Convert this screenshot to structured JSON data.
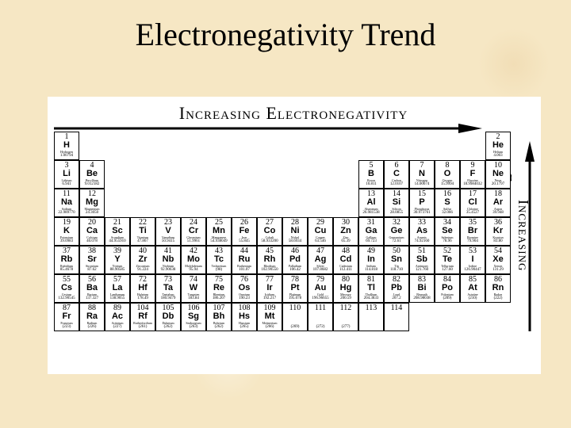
{
  "slide": {
    "title": "Electronegativity Trend"
  },
  "figure": {
    "top_label": "Increasing Electronegativity",
    "side_label": "Increasing Electronegativity"
  },
  "elements": [
    {
      "n": "1",
      "s": "H",
      "name": "Hydrogen",
      "m": "1.00794",
      "r": 1,
      "c": 1
    },
    {
      "n": "2",
      "s": "He",
      "name": "Helium",
      "m": "4.003",
      "r": 1,
      "c": 18
    },
    {
      "n": "3",
      "s": "Li",
      "name": "Lithium",
      "m": "6.941",
      "r": 2,
      "c": 1
    },
    {
      "n": "4",
      "s": "Be",
      "name": "Beryllium",
      "m": "9.012182",
      "r": 2,
      "c": 2
    },
    {
      "n": "5",
      "s": "B",
      "name": "Boron",
      "m": "10.811",
      "r": 2,
      "c": 13
    },
    {
      "n": "6",
      "s": "C",
      "name": "Carbon",
      "m": "12.0107",
      "r": 2,
      "c": 14
    },
    {
      "n": "7",
      "s": "N",
      "name": "Nitrogen",
      "m": "14.00674",
      "r": 2,
      "c": 15
    },
    {
      "n": "8",
      "s": "O",
      "name": "Oxygen",
      "m": "15.9994",
      "r": 2,
      "c": 16
    },
    {
      "n": "9",
      "s": "F",
      "name": "Fluorine",
      "m": "18.9984032",
      "r": 2,
      "c": 17
    },
    {
      "n": "10",
      "s": "Ne",
      "name": "Neon",
      "m": "20.1797",
      "r": 2,
      "c": 18
    },
    {
      "n": "11",
      "s": "Na",
      "name": "Sodium",
      "m": "22.989770",
      "r": 3,
      "c": 1
    },
    {
      "n": "12",
      "s": "Mg",
      "name": "Magnesium",
      "m": "24.3050",
      "r": 3,
      "c": 2
    },
    {
      "n": "13",
      "s": "Al",
      "name": "Aluminum",
      "m": "26.981538",
      "r": 3,
      "c": 13
    },
    {
      "n": "14",
      "s": "Si",
      "name": "Silicon",
      "m": "28.0855",
      "r": 3,
      "c": 14
    },
    {
      "n": "15",
      "s": "P",
      "name": "Phosphorus",
      "m": "30.973761",
      "r": 3,
      "c": 15
    },
    {
      "n": "16",
      "s": "S",
      "name": "Sulfur",
      "m": "32.066",
      "r": 3,
      "c": 16
    },
    {
      "n": "17",
      "s": "Cl",
      "name": "Chlorine",
      "m": "35.4527",
      "r": 3,
      "c": 17
    },
    {
      "n": "18",
      "s": "Ar",
      "name": "Argon",
      "m": "39.948",
      "r": 3,
      "c": 18
    },
    {
      "n": "19",
      "s": "K",
      "name": "Potassium",
      "m": "39.0983",
      "r": 4,
      "c": 1
    },
    {
      "n": "20",
      "s": "Ca",
      "name": "Calcium",
      "m": "40.078",
      "r": 4,
      "c": 2
    },
    {
      "n": "21",
      "s": "Sc",
      "name": "Scandium",
      "m": "44.955910",
      "r": 4,
      "c": 3
    },
    {
      "n": "22",
      "s": "Ti",
      "name": "Titanium",
      "m": "47.867",
      "r": 4,
      "c": 4
    },
    {
      "n": "23",
      "s": "V",
      "name": "Vanadium",
      "m": "50.9415",
      "r": 4,
      "c": 5
    },
    {
      "n": "24",
      "s": "Cr",
      "name": "Chromium",
      "m": "51.9961",
      "r": 4,
      "c": 6
    },
    {
      "n": "25",
      "s": "Mn",
      "name": "Manganese",
      "m": "54.938049",
      "r": 4,
      "c": 7
    },
    {
      "n": "26",
      "s": "Fe",
      "name": "Iron",
      "m": "55.845",
      "r": 4,
      "c": 8
    },
    {
      "n": "27",
      "s": "Co",
      "name": "Cobalt",
      "m": "58.933200",
      "r": 4,
      "c": 9
    },
    {
      "n": "28",
      "s": "Ni",
      "name": "Nickel",
      "m": "58.6934",
      "r": 4,
      "c": 10
    },
    {
      "n": "29",
      "s": "Cu",
      "name": "Copper",
      "m": "63.546",
      "r": 4,
      "c": 11
    },
    {
      "n": "30",
      "s": "Zn",
      "name": "Zinc",
      "m": "65.39",
      "r": 4,
      "c": 12
    },
    {
      "n": "31",
      "s": "Ga",
      "name": "Gallium",
      "m": "69.723",
      "r": 4,
      "c": 13
    },
    {
      "n": "32",
      "s": "Ge",
      "name": "Germanium",
      "m": "72.61",
      "r": 4,
      "c": 14
    },
    {
      "n": "33",
      "s": "As",
      "name": "Arsenic",
      "m": "74.92160",
      "r": 4,
      "c": 15
    },
    {
      "n": "34",
      "s": "Se",
      "name": "Selenium",
      "m": "78.96",
      "r": 4,
      "c": 16
    },
    {
      "n": "35",
      "s": "Br",
      "name": "Bromine",
      "m": "79.904",
      "r": 4,
      "c": 17
    },
    {
      "n": "36",
      "s": "Kr",
      "name": "Krypton",
      "m": "83.80",
      "r": 4,
      "c": 18
    },
    {
      "n": "37",
      "s": "Rb",
      "name": "Rubidium",
      "m": "85.4678",
      "r": 5,
      "c": 1
    },
    {
      "n": "38",
      "s": "Sr",
      "name": "Strontium",
      "m": "87.62",
      "r": 5,
      "c": 2
    },
    {
      "n": "39",
      "s": "Y",
      "name": "Yttrium",
      "m": "88.90585",
      "r": 5,
      "c": 3
    },
    {
      "n": "40",
      "s": "Zr",
      "name": "Zirconium",
      "m": "91.224",
      "r": 5,
      "c": 4
    },
    {
      "n": "41",
      "s": "Nb",
      "name": "Niobium",
      "m": "92.90638",
      "r": 5,
      "c": 5
    },
    {
      "n": "42",
      "s": "Mo",
      "name": "Molybdenum",
      "m": "95.94",
      "r": 5,
      "c": 6
    },
    {
      "n": "43",
      "s": "Tc",
      "name": "Technetium",
      "m": "(98)",
      "r": 5,
      "c": 7
    },
    {
      "n": "44",
      "s": "Ru",
      "name": "Ruthenium",
      "m": "101.07",
      "r": 5,
      "c": 8
    },
    {
      "n": "45",
      "s": "Rh",
      "name": "Rhodium",
      "m": "102.90550",
      "r": 5,
      "c": 9
    },
    {
      "n": "46",
      "s": "Pd",
      "name": "Palladium",
      "m": "106.42",
      "r": 5,
      "c": 10
    },
    {
      "n": "47",
      "s": "Ag",
      "name": "Silver",
      "m": "107.8682",
      "r": 5,
      "c": 11
    },
    {
      "n": "48",
      "s": "Cd",
      "name": "Cadmium",
      "m": "112.411",
      "r": 5,
      "c": 12
    },
    {
      "n": "49",
      "s": "In",
      "name": "Indium",
      "m": "114.818",
      "r": 5,
      "c": 13
    },
    {
      "n": "50",
      "s": "Sn",
      "name": "Tin",
      "m": "118.710",
      "r": 5,
      "c": 14
    },
    {
      "n": "51",
      "s": "Sb",
      "name": "Antimony",
      "m": "121.760",
      "r": 5,
      "c": 15
    },
    {
      "n": "52",
      "s": "Te",
      "name": "Tellurium",
      "m": "127.60",
      "r": 5,
      "c": 16
    },
    {
      "n": "53",
      "s": "I",
      "name": "Iodine",
      "m": "126.90447",
      "r": 5,
      "c": 17
    },
    {
      "n": "54",
      "s": "Xe",
      "name": "Xenon",
      "m": "131.29",
      "r": 5,
      "c": 18
    },
    {
      "n": "55",
      "s": "Cs",
      "name": "Cesium",
      "m": "132.90545",
      "r": 6,
      "c": 1
    },
    {
      "n": "56",
      "s": "Ba",
      "name": "Barium",
      "m": "137.327",
      "r": 6,
      "c": 2
    },
    {
      "n": "57",
      "s": "La",
      "name": "Lanthanum",
      "m": "138.9055",
      "r": 6,
      "c": 3
    },
    {
      "n": "72",
      "s": "Hf",
      "name": "Hafnium",
      "m": "178.49",
      "r": 6,
      "c": 4
    },
    {
      "n": "73",
      "s": "Ta",
      "name": "Tantalum",
      "m": "180.9479",
      "r": 6,
      "c": 5
    },
    {
      "n": "74",
      "s": "W",
      "name": "Tungsten",
      "m": "183.84",
      "r": 6,
      "c": 6
    },
    {
      "n": "75",
      "s": "Re",
      "name": "Rhenium",
      "m": "186.207",
      "r": 6,
      "c": 7
    },
    {
      "n": "76",
      "s": "Os",
      "name": "Osmium",
      "m": "190.23",
      "r": 6,
      "c": 8
    },
    {
      "n": "77",
      "s": "Ir",
      "name": "Iridium",
      "m": "192.217",
      "r": 6,
      "c": 9
    },
    {
      "n": "78",
      "s": "Pt",
      "name": "Platinum",
      "m": "195.078",
      "r": 6,
      "c": 10
    },
    {
      "n": "79",
      "s": "Au",
      "name": "Gold",
      "m": "196.96655",
      "r": 6,
      "c": 11
    },
    {
      "n": "80",
      "s": "Hg",
      "name": "Mercury",
      "m": "200.59",
      "r": 6,
      "c": 12
    },
    {
      "n": "81",
      "s": "Tl",
      "name": "Thallium",
      "m": "204.3833",
      "r": 6,
      "c": 13
    },
    {
      "n": "82",
      "s": "Pb",
      "name": "Lead",
      "m": "207.2",
      "r": 6,
      "c": 14
    },
    {
      "n": "83",
      "s": "Bi",
      "name": "Bismuth",
      "m": "208.98038",
      "r": 6,
      "c": 15
    },
    {
      "n": "84",
      "s": "Po",
      "name": "Polonium",
      "m": "(209)",
      "r": 6,
      "c": 16
    },
    {
      "n": "85",
      "s": "At",
      "name": "Astatine",
      "m": "(210)",
      "r": 6,
      "c": 17
    },
    {
      "n": "86",
      "s": "Rn",
      "name": "Radon",
      "m": "(222)",
      "r": 6,
      "c": 18
    },
    {
      "n": "87",
      "s": "Fr",
      "name": "Francium",
      "m": "(223)",
      "r": 7,
      "c": 1
    },
    {
      "n": "88",
      "s": "Ra",
      "name": "Radium",
      "m": "(226)",
      "r": 7,
      "c": 2
    },
    {
      "n": "89",
      "s": "Ac",
      "name": "Actinium",
      "m": "(227)",
      "r": 7,
      "c": 3
    },
    {
      "n": "104",
      "s": "Rf",
      "name": "Rutherfordium",
      "m": "(261)",
      "r": 7,
      "c": 4
    },
    {
      "n": "105",
      "s": "Db",
      "name": "Dubnium",
      "m": "(262)",
      "r": 7,
      "c": 5
    },
    {
      "n": "106",
      "s": "Sg",
      "name": "Seaborgium",
      "m": "(263)",
      "r": 7,
      "c": 6
    },
    {
      "n": "107",
      "s": "Bh",
      "name": "Bohrium",
      "m": "(262)",
      "r": 7,
      "c": 7
    },
    {
      "n": "108",
      "s": "Hs",
      "name": "Hassium",
      "m": "(265)",
      "r": 7,
      "c": 8
    },
    {
      "n": "109",
      "s": "Mt",
      "name": "Meitnerium",
      "m": "(266)",
      "r": 7,
      "c": 9
    },
    {
      "n": "110",
      "s": "",
      "name": "",
      "m": "(269)",
      "r": 7,
      "c": 10
    },
    {
      "n": "111",
      "s": "",
      "name": "",
      "m": "(272)",
      "r": 7,
      "c": 11
    },
    {
      "n": "112",
      "s": "",
      "name": "",
      "m": "(277)",
      "r": 7,
      "c": 12
    },
    {
      "n": "113",
      "s": "",
      "name": "",
      "m": "",
      "r": 7,
      "c": 13
    },
    {
      "n": "114",
      "s": "",
      "name": "",
      "m": "",
      "r": 7,
      "c": 14
    }
  ]
}
